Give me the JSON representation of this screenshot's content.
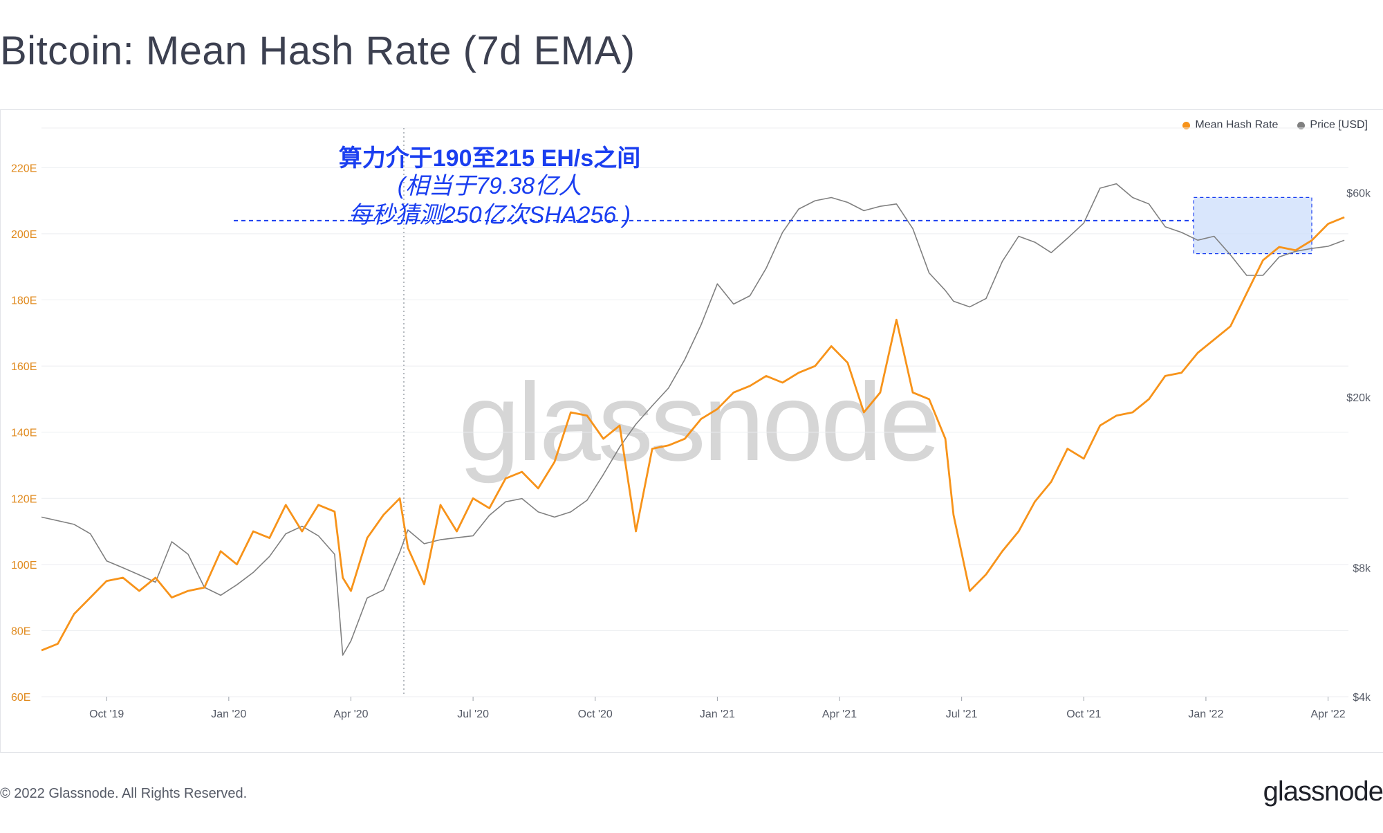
{
  "title": "Bitcoin: Mean Hash Rate (7d EMA)",
  "footer": "© 2022 Glassnode. All Rights Reserved.",
  "brand": "glassnode",
  "watermark": "glassnode",
  "legend": [
    {
      "label": "Mean Hash Rate",
      "color": "#f7931a"
    },
    {
      "label": "Price [USD]",
      "color": "#808080"
    }
  ],
  "annotation": {
    "line1": "算力介于190至215 EH/s之间",
    "line2": "(相当于79.38亿人",
    "line3": "每秒猜测250亿次SHA256 )",
    "level": 204,
    "color": "#1a3ef0"
  },
  "chart_data": {
    "type": "line",
    "title": "Bitcoin: Mean Hash Rate (7d EMA)",
    "y_left_ticks": [
      "220E",
      "200E",
      "180E",
      "160E",
      "140E",
      "120E",
      "100E",
      "80E",
      "60E"
    ],
    "y_left_values": [
      220,
      200,
      180,
      160,
      140,
      120,
      100,
      80,
      60
    ],
    "ylim_left": [
      60,
      232
    ],
    "y_right_ticks": [
      "$60k",
      "$20k",
      "$8k",
      "$4k"
    ],
    "y_right_values": [
      60000,
      20000,
      8000,
      4000
    ],
    "ylim_right_log": [
      4000,
      85000
    ],
    "x_ticks": [
      "Oct '19",
      "Jan '20",
      "Apr '20",
      "Jul '20",
      "Oct '20",
      "Jan '21",
      "Apr '21",
      "Jul '21",
      "Oct '21",
      "Jan '22",
      "Apr '22"
    ],
    "x_tick_months": [
      2,
      5,
      8,
      11,
      14,
      17,
      20,
      23,
      26,
      29,
      32
    ],
    "xlim_months": [
      0.4,
      32.5
    ],
    "vertical_marker_month": 9.3,
    "highlight_box": {
      "x_months": [
        28.7,
        31.6
      ],
      "y_hashrate": [
        194,
        211
      ]
    },
    "series": [
      {
        "name": "Mean Hash Rate",
        "color": "#f7931a",
        "x": [
          0.4,
          0.8,
          1.2,
          1.6,
          2.0,
          2.4,
          2.8,
          3.2,
          3.6,
          4.0,
          4.4,
          4.8,
          5.2,
          5.6,
          6.0,
          6.4,
          6.8,
          7.2,
          7.6,
          7.8,
          8.0,
          8.4,
          8.8,
          9.2,
          9.4,
          9.8,
          10.2,
          10.6,
          11.0,
          11.4,
          11.8,
          12.2,
          12.6,
          13.0,
          13.4,
          13.8,
          14.2,
          14.6,
          15.0,
          15.4,
          15.8,
          16.2,
          16.6,
          17.0,
          17.4,
          17.8,
          18.2,
          18.6,
          19.0,
          19.4,
          19.8,
          20.2,
          20.6,
          21.0,
          21.4,
          21.8,
          22.2,
          22.6,
          22.8,
          23.2,
          23.6,
          24.0,
          24.4,
          24.8,
          25.2,
          25.6,
          26.0,
          26.4,
          26.8,
          27.2,
          27.6,
          28.0,
          28.4,
          28.8,
          29.2,
          29.6,
          30.0,
          30.4,
          30.8,
          31.2,
          31.6,
          32.0,
          32.4
        ],
        "values": [
          74,
          76,
          85,
          90,
          95,
          96,
          92,
          96,
          90,
          92,
          93,
          104,
          100,
          110,
          108,
          118,
          110,
          118,
          116,
          96,
          92,
          108,
          115,
          120,
          105,
          94,
          118,
          110,
          120,
          117,
          126,
          128,
          123,
          131,
          146,
          145,
          138,
          142,
          110,
          135,
          136,
          138,
          144,
          147,
          152,
          154,
          157,
          155,
          158,
          160,
          166,
          161,
          146,
          152,
          174,
          152,
          150,
          138,
          115,
          92,
          97,
          104,
          110,
          119,
          125,
          135,
          132,
          142,
          145,
          146,
          150,
          157,
          158,
          164,
          168,
          172,
          182,
          192,
          196,
          195,
          198,
          203,
          205
        ]
      },
      {
        "name": "Price [USD]",
        "color": "#808080",
        "x": [
          0.4,
          0.8,
          1.2,
          1.6,
          2.0,
          2.4,
          2.8,
          3.2,
          3.6,
          4.0,
          4.4,
          4.8,
          5.2,
          5.6,
          6.0,
          6.4,
          6.8,
          7.2,
          7.6,
          7.8,
          8.0,
          8.4,
          8.8,
          9.2,
          9.4,
          9.8,
          10.2,
          10.6,
          11.0,
          11.4,
          11.8,
          12.2,
          12.6,
          13.0,
          13.4,
          13.8,
          14.2,
          14.6,
          15.0,
          15.4,
          15.8,
          16.2,
          16.6,
          17.0,
          17.4,
          17.8,
          18.2,
          18.6,
          19.0,
          19.4,
          19.8,
          20.2,
          20.6,
          21.0,
          21.4,
          21.8,
          22.2,
          22.6,
          22.8,
          23.2,
          23.6,
          24.0,
          24.4,
          24.8,
          25.2,
          25.6,
          26.0,
          26.4,
          26.8,
          27.2,
          27.6,
          28.0,
          28.4,
          28.8,
          29.2,
          29.6,
          30.0,
          30.4,
          30.8,
          31.2,
          31.6,
          32.0,
          32.4
        ],
        "values": [
          10500,
          10300,
          10100,
          9600,
          8300,
          8000,
          7700,
          7400,
          9200,
          8600,
          7200,
          6900,
          7300,
          7800,
          8500,
          9600,
          10000,
          9500,
          8600,
          5000,
          5400,
          6800,
          7100,
          8700,
          9800,
          9100,
          9300,
          9400,
          9500,
          10600,
          11400,
          11600,
          10800,
          10500,
          10800,
          11500,
          13200,
          15300,
          17300,
          19100,
          21000,
          24500,
          29500,
          36800,
          33000,
          34500,
          40000,
          48500,
          55000,
          57500,
          58500,
          57000,
          54500,
          55800,
          56500,
          49500,
          39000,
          35500,
          33500,
          32500,
          34000,
          41500,
          47500,
          46000,
          43500,
          47000,
          51000,
          61500,
          63000,
          58500,
          56500,
          50000,
          48500,
          46500,
          47500,
          43000,
          38500,
          38500,
          42500,
          43800,
          44500,
          45000,
          46500
        ]
      }
    ]
  }
}
